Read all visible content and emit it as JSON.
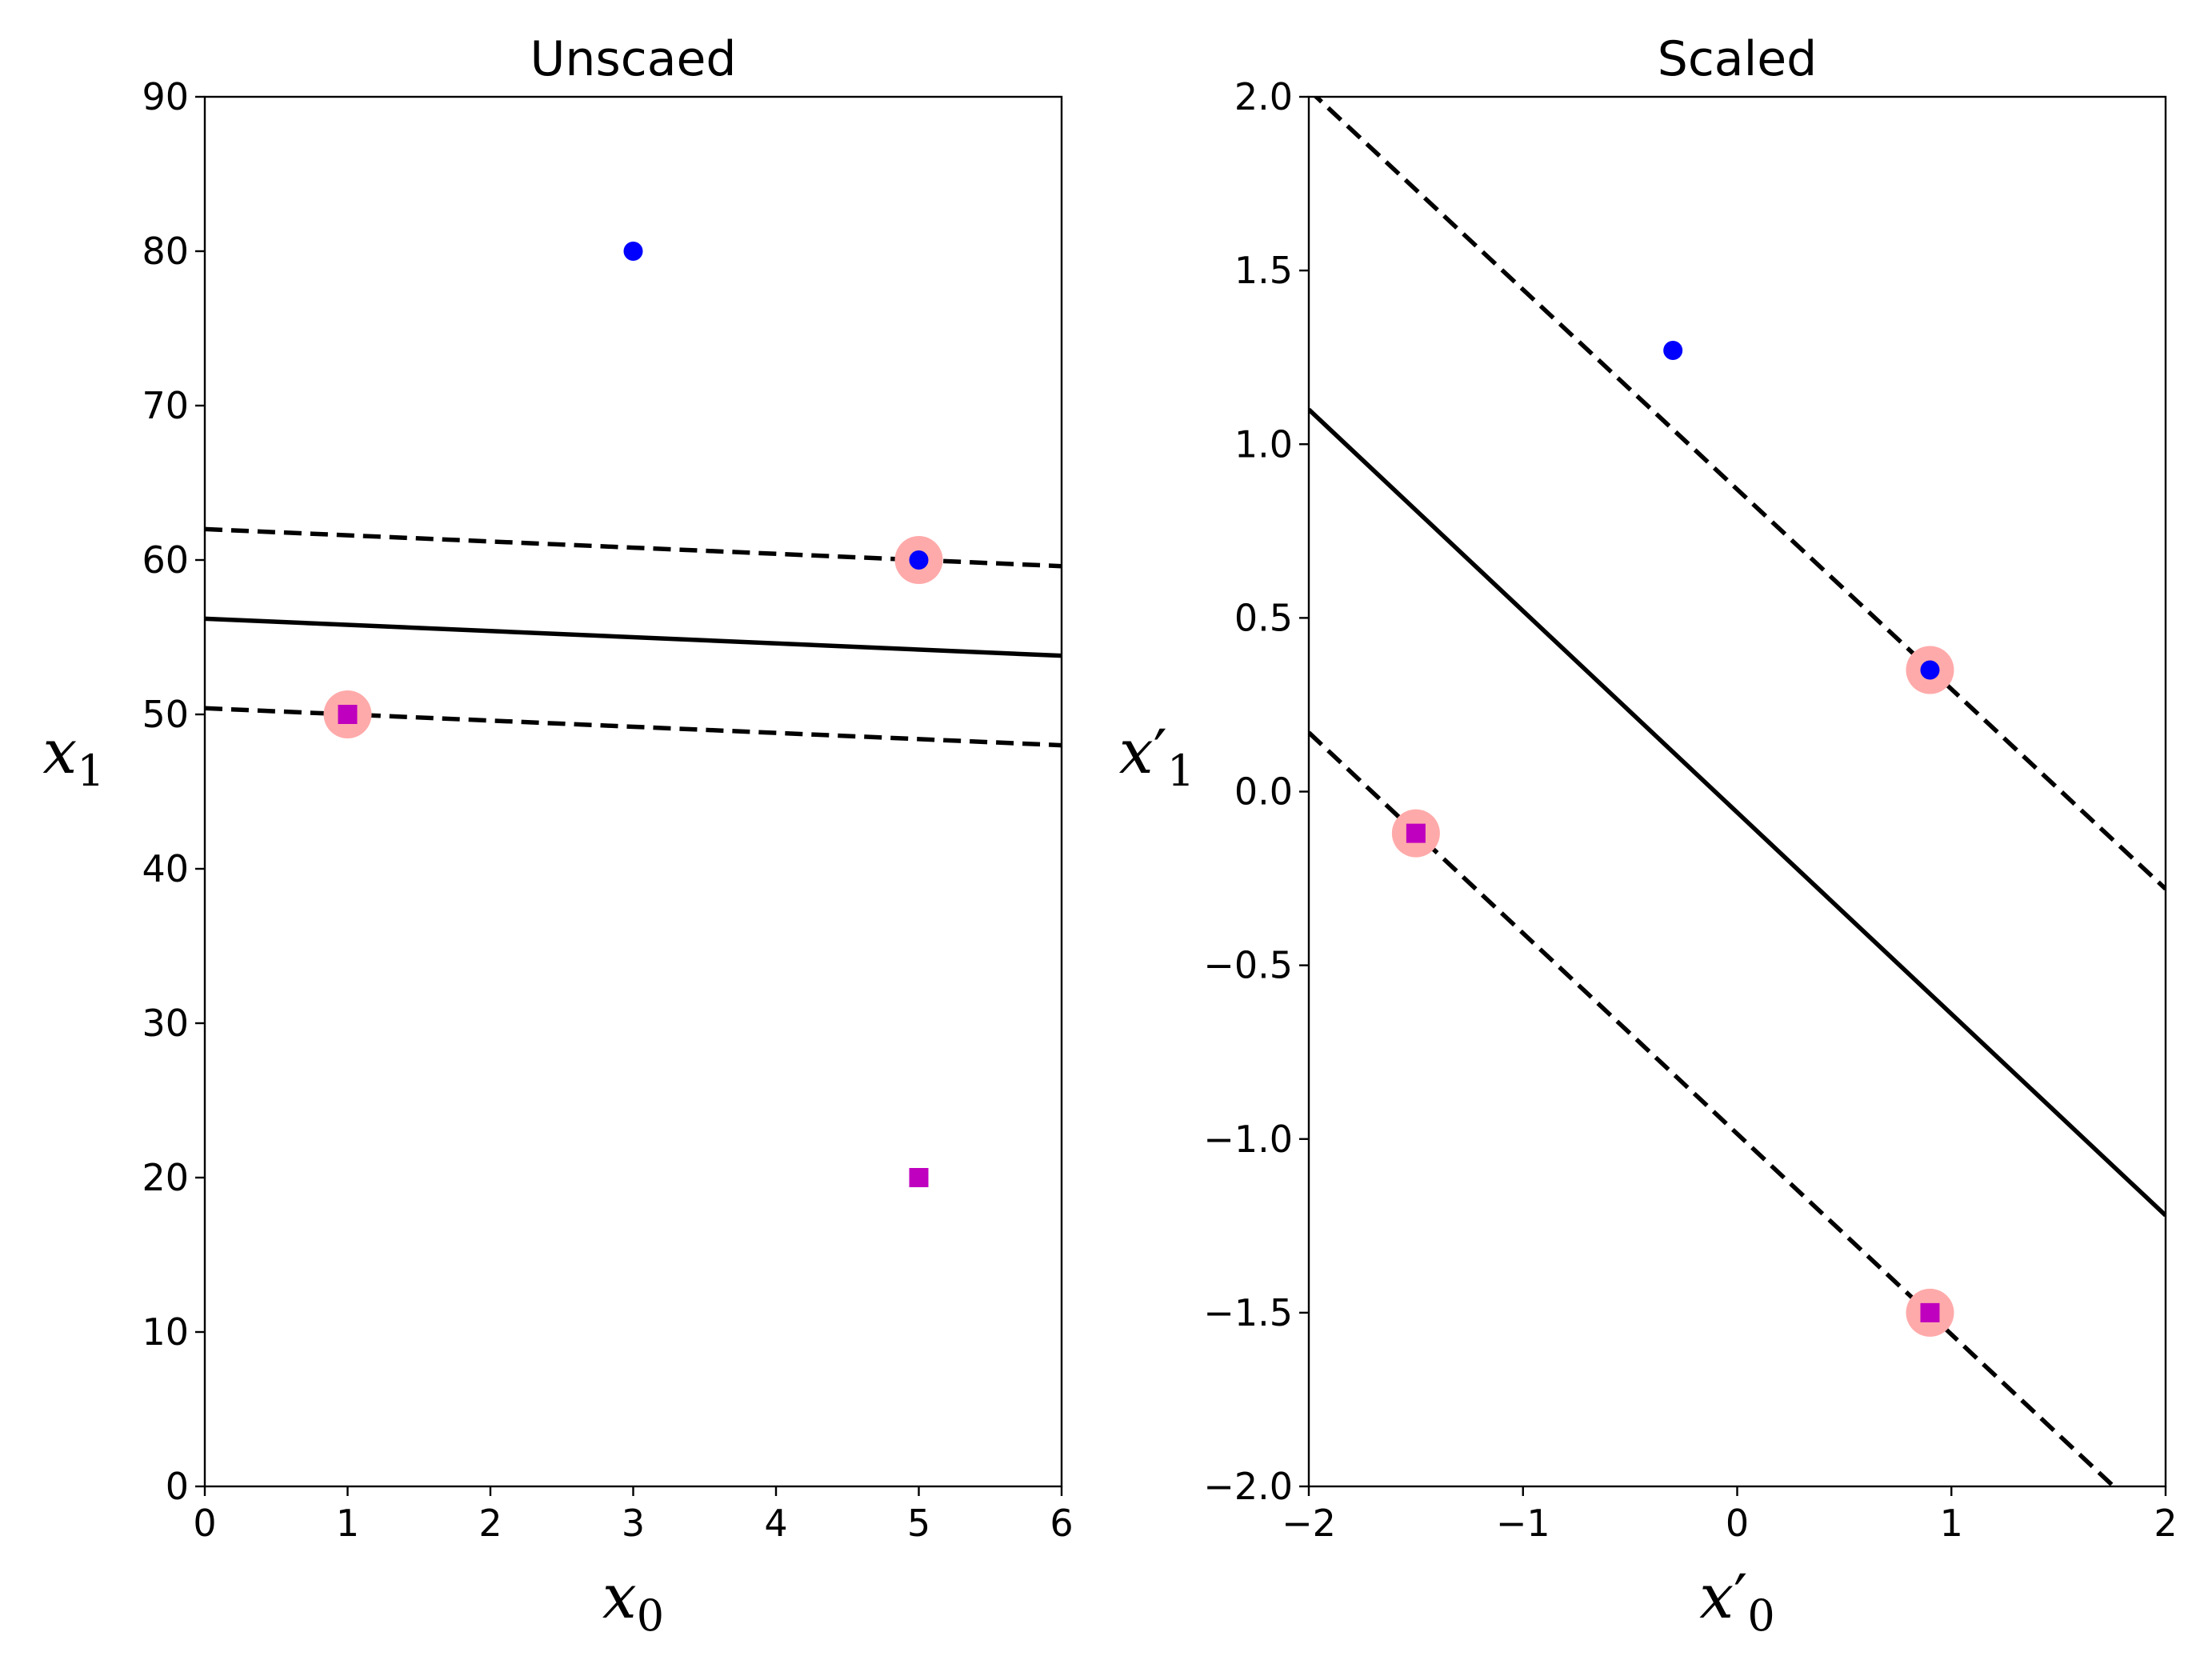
{
  "chart_data": [
    {
      "type": "scatter",
      "title": "Unscaed",
      "xlabel": {
        "base": "x",
        "prime": "",
        "sub": "0"
      },
      "ylabel": {
        "base": "x",
        "prime": "",
        "sub": "1"
      },
      "xlim": [
        0,
        6
      ],
      "ylim": [
        0,
        90
      ],
      "x_ticks": [
        "0",
        "1",
        "2",
        "3",
        "4",
        "5",
        "6"
      ],
      "x_tick_values": [
        0,
        1,
        2,
        3,
        4,
        5,
        6
      ],
      "y_ticks": [
        "0",
        "10",
        "20",
        "30",
        "40",
        "50",
        "60",
        "70",
        "80",
        "90"
      ],
      "y_tick_values": [
        0,
        10,
        20,
        30,
        40,
        50,
        60,
        70,
        80,
        90
      ],
      "grid": false,
      "series": [
        {
          "marker": "circle",
          "color": "#0000ff",
          "points": [
            [
              3,
              80
            ],
            [
              5,
              60
            ]
          ]
        },
        {
          "marker": "square",
          "color": "#bf00bf",
          "points": [
            [
              1,
              50
            ],
            [
              5,
              20
            ]
          ]
        }
      ],
      "support_vectors": {
        "color": "#ffaaaa",
        "points": [
          [
            5,
            60
          ],
          [
            1,
            50
          ]
        ]
      },
      "lines": [
        {
          "style": "solid",
          "x": [
            0,
            6
          ],
          "y": [
            56.2,
            53.8
          ]
        },
        {
          "style": "dashed",
          "x": [
            0,
            6
          ],
          "y": [
            62.0,
            59.6
          ]
        },
        {
          "style": "dashed",
          "x": [
            0,
            6
          ],
          "y": [
            50.4,
            48.0
          ]
        }
      ]
    },
    {
      "type": "scatter",
      "title": "Scaled",
      "xlabel": {
        "base": "x",
        "prime": "′",
        "sub": "0"
      },
      "ylabel": {
        "base": "x",
        "prime": "′",
        "sub": "1"
      },
      "xlim": [
        -2,
        2
      ],
      "ylim": [
        -2,
        2
      ],
      "x_ticks": [
        "−2",
        "−1",
        "0",
        "1",
        "2"
      ],
      "x_tick_values": [
        -2,
        -1,
        0,
        1,
        2
      ],
      "y_ticks": [
        "−2.0",
        "−1.5",
        "−1.0",
        "−0.5",
        "0.0",
        "0.5",
        "1.0",
        "1.5",
        "2.0"
      ],
      "y_tick_values": [
        -2,
        -1.5,
        -1,
        -0.5,
        0,
        0.5,
        1,
        1.5,
        2
      ],
      "grid": false,
      "series": [
        {
          "marker": "circle",
          "color": "#0000ff",
          "points": [
            [
              -0.3,
              1.27
            ],
            [
              0.9,
              0.35
            ]
          ]
        },
        {
          "marker": "square",
          "color": "#bf00bf",
          "points": [
            [
              -1.5,
              -0.12
            ],
            [
              0.9,
              -1.5
            ]
          ]
        }
      ],
      "support_vectors": {
        "color": "#ffaaaa",
        "points": [
          [
            0.9,
            0.35
          ],
          [
            -1.5,
            -0.12
          ],
          [
            0.9,
            -1.5
          ]
        ]
      },
      "lines": [
        {
          "style": "solid",
          "x": [
            -2,
            2
          ],
          "y": [
            1.1,
            -1.22
          ]
        },
        {
          "style": "dashed",
          "x": [
            -2,
            2
          ],
          "y": [
            2.02,
            -0.28
          ]
        },
        {
          "style": "dashed",
          "x": [
            -2,
            2
          ],
          "y": [
            0.17,
            -2.14
          ]
        }
      ]
    }
  ]
}
